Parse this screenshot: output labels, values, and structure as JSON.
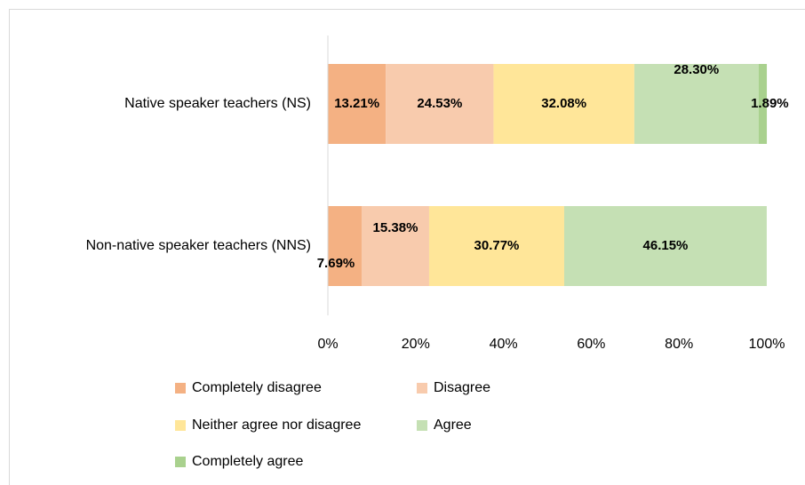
{
  "chart_data": {
    "type": "stacked-barh",
    "categories": [
      "Native speaker teachers (NS)",
      "Non-native speaker teachers (NNS)"
    ],
    "series": [
      {
        "name": "Completely disagree",
        "color": "#f4b183",
        "values": [
          13.21,
          7.69
        ],
        "value_labels": [
          "13.21%",
          "7.69%"
        ]
      },
      {
        "name": "Disagree",
        "color": "#f8cbad",
        "values": [
          24.53,
          15.38
        ],
        "value_labels": [
          "24.53%",
          "15.38%"
        ]
      },
      {
        "name": "Neither agree nor disagree",
        "color": "#ffe699",
        "values": [
          32.08,
          30.77
        ],
        "value_labels": [
          "32.08%",
          "30.77%"
        ]
      },
      {
        "name": "Agree",
        "color": "#c5e0b4",
        "values": [
          28.3,
          46.15
        ],
        "value_labels": [
          "28.30%",
          "46.15%"
        ]
      },
      {
        "name": "Completely agree",
        "color": "#a9d18e",
        "values": [
          1.89,
          0
        ],
        "value_labels": [
          "1.89%",
          null
        ]
      }
    ],
    "xlim": [
      0,
      100
    ],
    "xticks": [
      {
        "value": 0,
        "label": "0%"
      },
      {
        "value": 20,
        "label": "20%"
      },
      {
        "value": 40,
        "label": "40%"
      },
      {
        "value": 60,
        "label": "60%"
      },
      {
        "value": 80,
        "label": "80%"
      },
      {
        "value": 100,
        "label": "100%"
      }
    ],
    "legend": "bottom"
  }
}
